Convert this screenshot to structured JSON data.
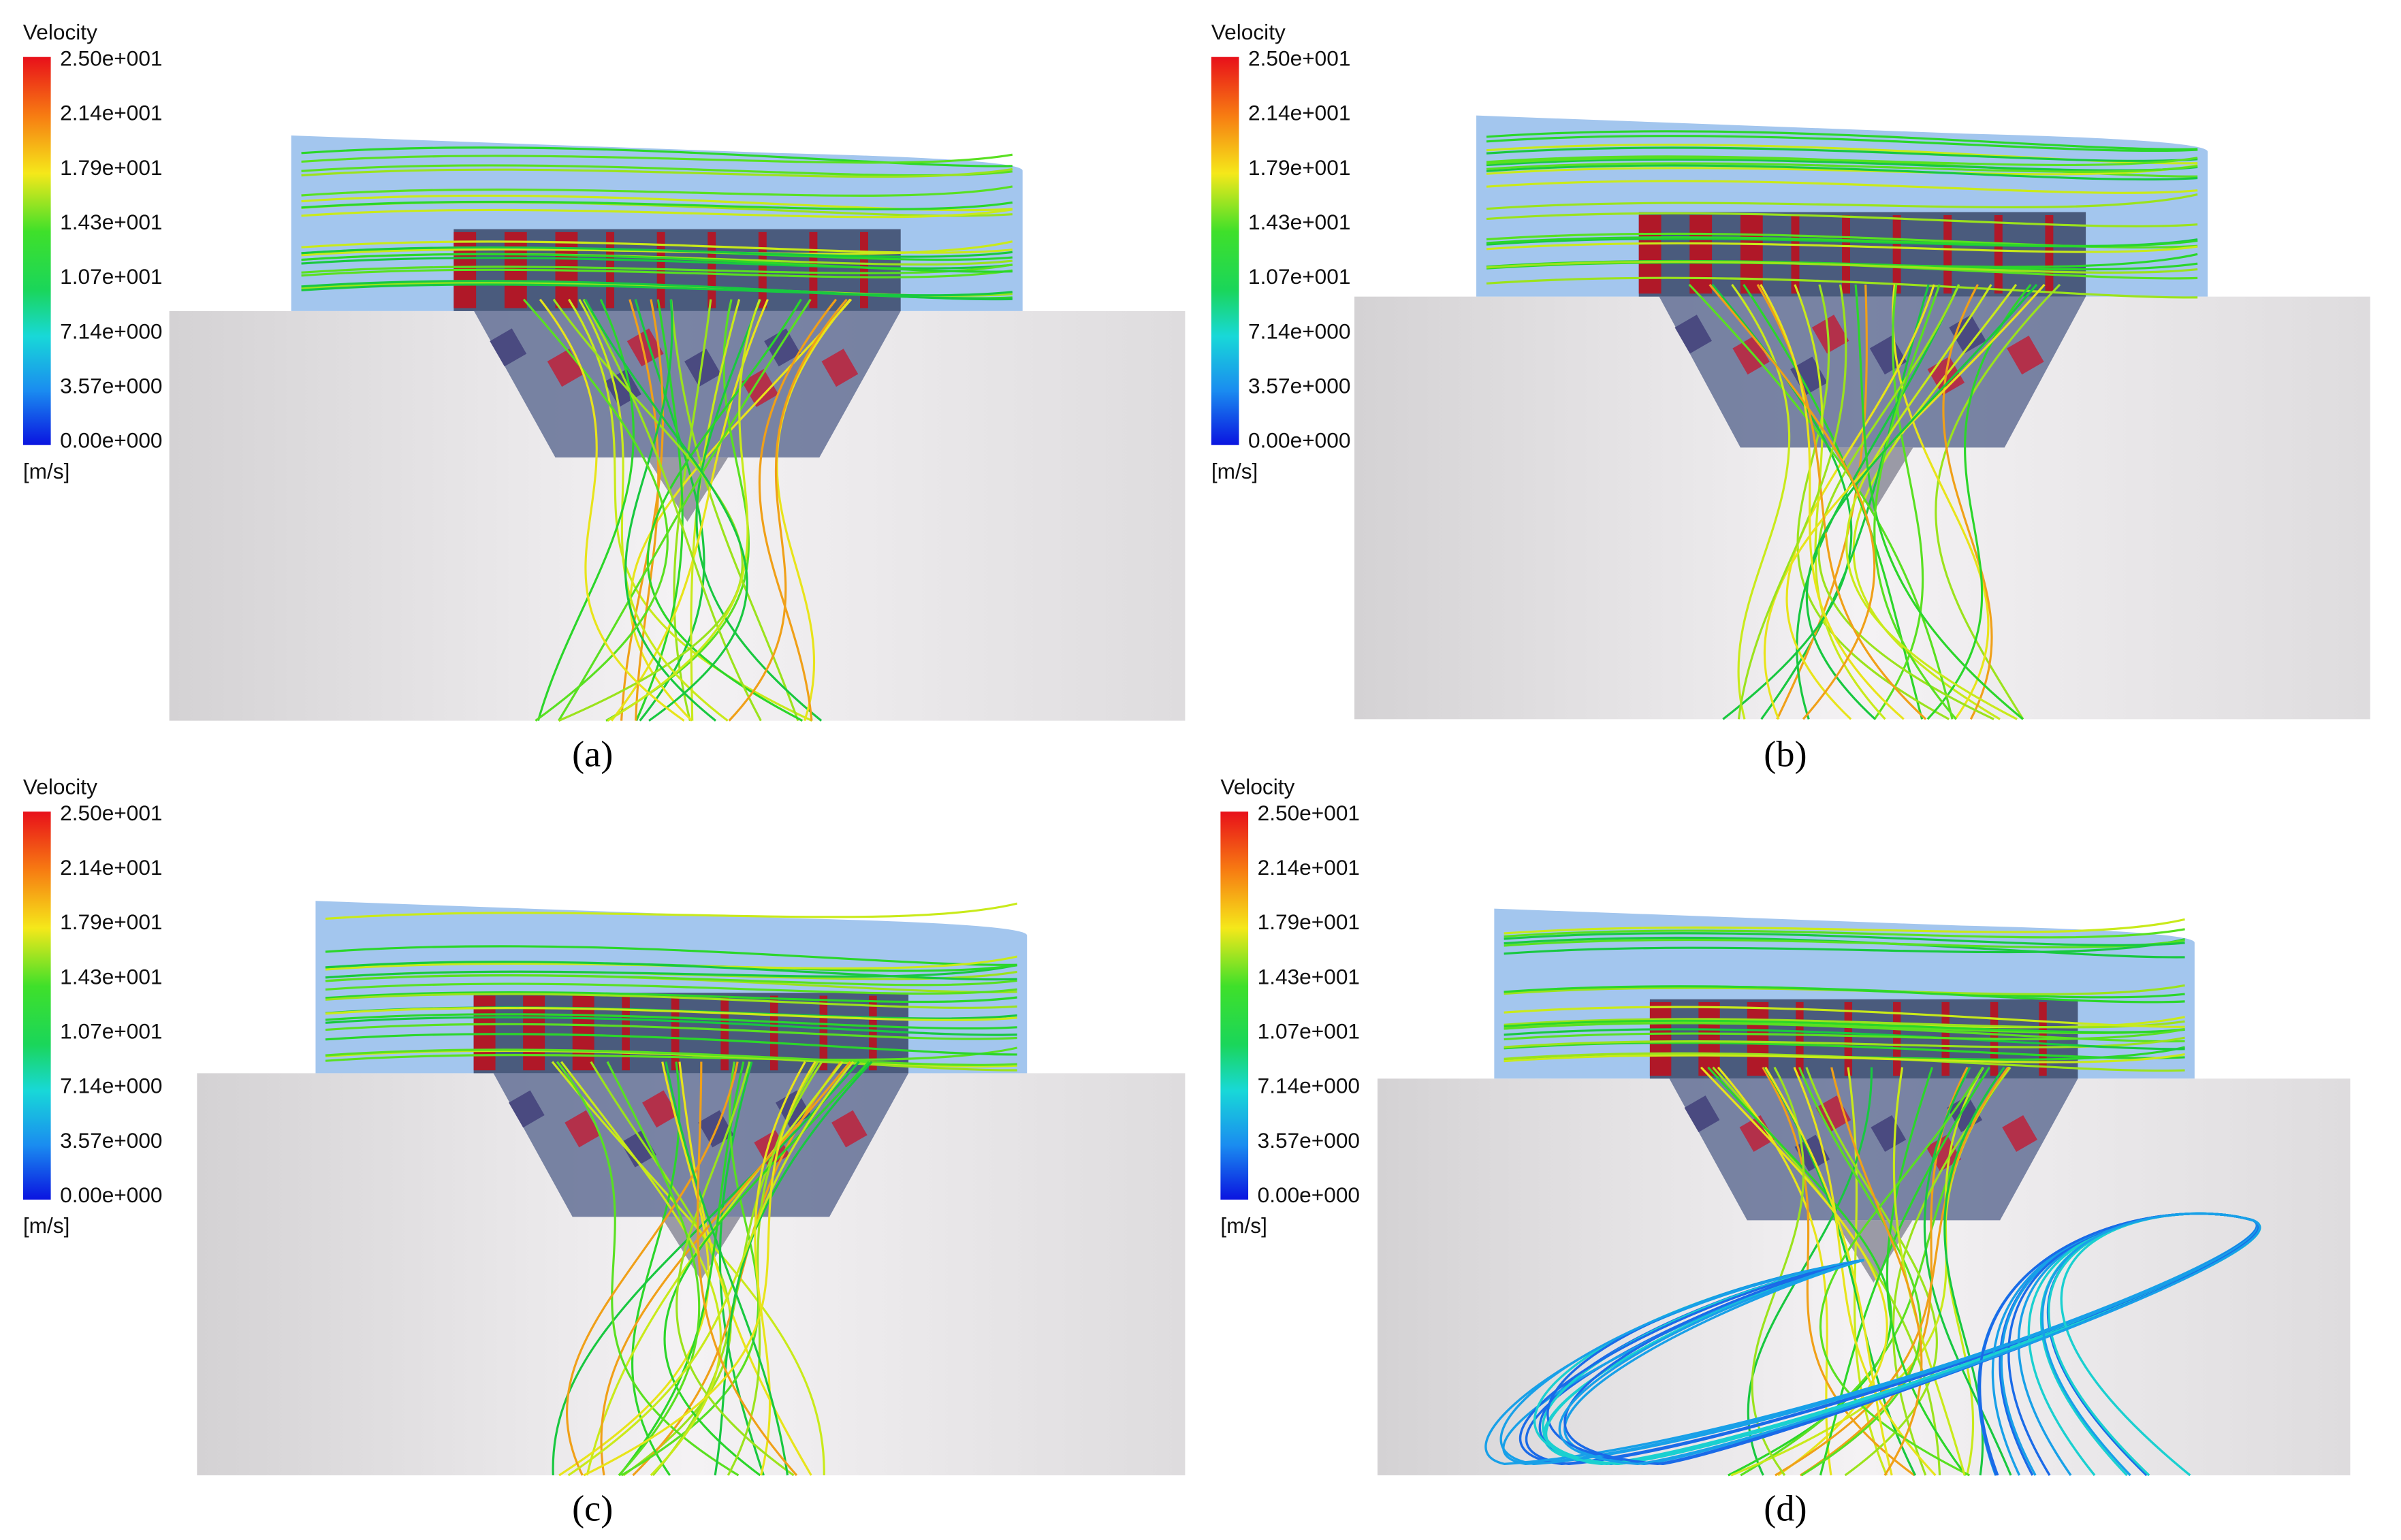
{
  "panels": [
    {
      "label": "(a)",
      "legend": {
        "title": "Velocity",
        "ticks": [
          "2.50e+001",
          "2.14e+001",
          "1.79e+001",
          "1.43e+001",
          "1.07e+001",
          "7.14e+000",
          "3.57e+000",
          "0.00e+000"
        ],
        "unit": "[m/s]"
      }
    },
    {
      "label": "(b)",
      "legend": {
        "title": "Velocity",
        "ticks": [
          "2.50e+001",
          "2.14e+001",
          "1.79e+001",
          "1.43e+001",
          "1.07e+001",
          "7.14e+000",
          "3.57e+000",
          "0.00e+000"
        ],
        "unit": "[m/s]"
      }
    },
    {
      "label": "(c)",
      "legend": {
        "title": "Velocity",
        "ticks": [
          "2.50e+001",
          "2.14e+001",
          "1.79e+001",
          "1.43e+001",
          "1.07e+001",
          "7.14e+000",
          "3.57e+000",
          "0.00e+000"
        ],
        "unit": "[m/s]"
      }
    },
    {
      "label": "(d)",
      "legend": {
        "title": "Velocity",
        "ticks": [
          "2.50e+001",
          "2.14e+001",
          "1.79e+001",
          "1.43e+001",
          "1.07e+001",
          "7.14e+000",
          "3.57e+000",
          "0.00e+000"
        ],
        "unit": "[m/s]"
      }
    }
  ]
}
